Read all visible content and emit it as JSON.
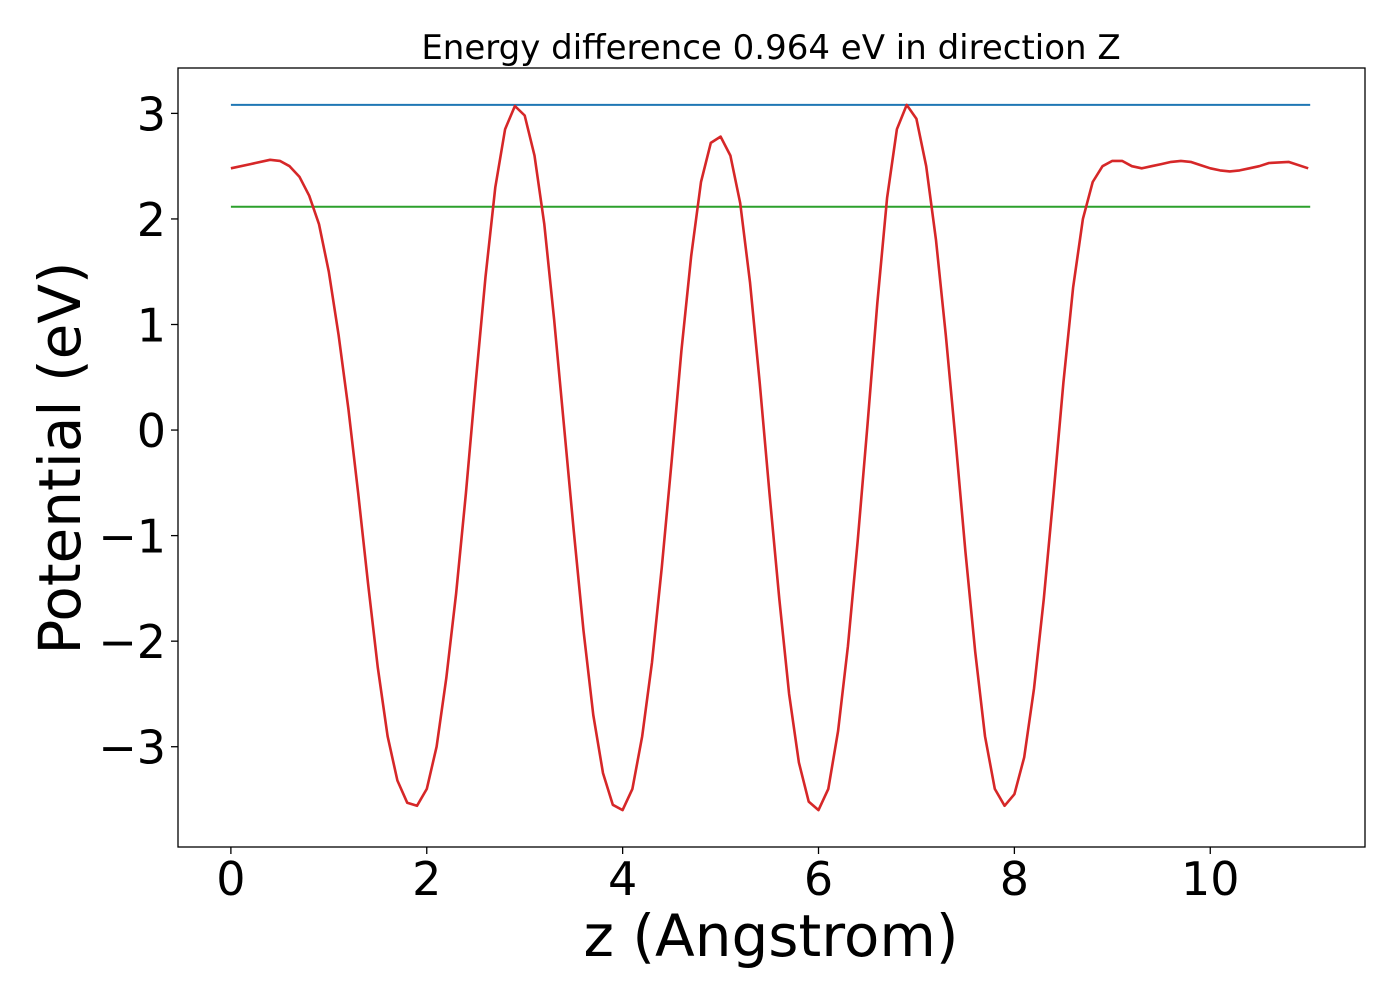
{
  "chart_data": {
    "type": "line",
    "title": "Energy difference 0.964 eV in direction Z",
    "xlabel": "z (Angstrom)",
    "ylabel": "Potential (eV)",
    "xlim": [
      -0.54,
      11.58
    ],
    "ylim": [
      -3.95,
      3.43
    ],
    "xticks": [
      0,
      2,
      4,
      6,
      8,
      10
    ],
    "xtick_labels": [
      "0",
      "2",
      "4",
      "6",
      "8",
      "10"
    ],
    "yticks": [
      -3,
      -2,
      -1,
      0,
      1,
      2,
      3
    ],
    "ytick_labels": [
      "−3",
      "−2",
      "−1",
      "0",
      "1",
      "2",
      "3"
    ],
    "grid": false,
    "series": [
      {
        "color": "#d62728",
        "x": [
          0,
          0.2,
          0.4,
          0.5,
          0.6,
          0.7,
          0.8,
          0.9,
          1.0,
          1.1,
          1.2,
          1.3,
          1.4,
          1.5,
          1.6,
          1.7,
          1.8,
          1.9,
          2.0,
          2.1,
          2.2,
          2.3,
          2.4,
          2.5,
          2.6,
          2.7,
          2.8,
          2.9,
          3.0,
          3.1,
          3.2,
          3.3,
          3.4,
          3.5,
          3.6,
          3.7,
          3.8,
          3.9,
          4.0,
          4.1,
          4.2,
          4.3,
          4.4,
          4.5,
          4.6,
          4.7,
          4.8,
          4.9,
          5.0,
          5.1,
          5.2,
          5.3,
          5.4,
          5.5,
          5.6,
          5.7,
          5.8,
          5.9,
          6.0,
          6.1,
          6.2,
          6.3,
          6.4,
          6.5,
          6.6,
          6.7,
          6.8,
          6.9,
          7.0,
          7.1,
          7.2,
          7.3,
          7.4,
          7.5,
          7.6,
          7.7,
          7.8,
          7.9,
          8.0,
          8.1,
          8.2,
          8.3,
          8.4,
          8.5,
          8.6,
          8.7,
          8.8,
          8.9,
          9.0,
          9.1,
          9.2,
          9.3,
          9.4,
          9.5,
          9.6,
          9.7,
          9.8,
          9.9,
          10.0,
          10.1,
          10.2,
          10.3,
          10.4,
          10.5,
          10.6,
          10.8,
          11.0
        ],
        "y": [
          2.48,
          2.52,
          2.56,
          2.55,
          2.5,
          2.4,
          2.22,
          1.95,
          1.5,
          0.9,
          0.2,
          -0.6,
          -1.45,
          -2.25,
          -2.9,
          -3.32,
          -3.53,
          -3.56,
          -3.4,
          -3.0,
          -2.35,
          -1.55,
          -0.6,
          0.45,
          1.45,
          2.3,
          2.85,
          3.07,
          2.98,
          2.6,
          1.95,
          1.05,
          0.05,
          -0.95,
          -1.9,
          -2.7,
          -3.25,
          -3.55,
          -3.6,
          -3.4,
          -2.9,
          -2.2,
          -1.3,
          -0.3,
          0.75,
          1.65,
          2.35,
          2.72,
          2.78,
          2.6,
          2.15,
          1.4,
          0.45,
          -0.6,
          -1.6,
          -2.5,
          -3.15,
          -3.52,
          -3.6,
          -3.4,
          -2.85,
          -2.05,
          -1.05,
          0.05,
          1.2,
          2.2,
          2.85,
          3.08,
          2.95,
          2.5,
          1.8,
          0.9,
          -0.1,
          -1.15,
          -2.1,
          -2.9,
          -3.4,
          -3.56,
          -3.45,
          -3.1,
          -2.45,
          -1.6,
          -0.6,
          0.45,
          1.35,
          2.0,
          2.35,
          2.5,
          2.55,
          2.55,
          2.5,
          2.48,
          2.5,
          2.52,
          2.54,
          2.55,
          2.54,
          2.51,
          2.48,
          2.46,
          2.45,
          2.46,
          2.48,
          2.5,
          2.53,
          2.54,
          2.48
        ]
      },
      {
        "color": "#1f77b4",
        "x": [
          0,
          11.02
        ],
        "y": [
          3.08,
          3.08
        ]
      },
      {
        "color": "#2ca02c",
        "x": [
          0,
          11.02
        ],
        "y": [
          2.116,
          2.116
        ]
      }
    ]
  }
}
